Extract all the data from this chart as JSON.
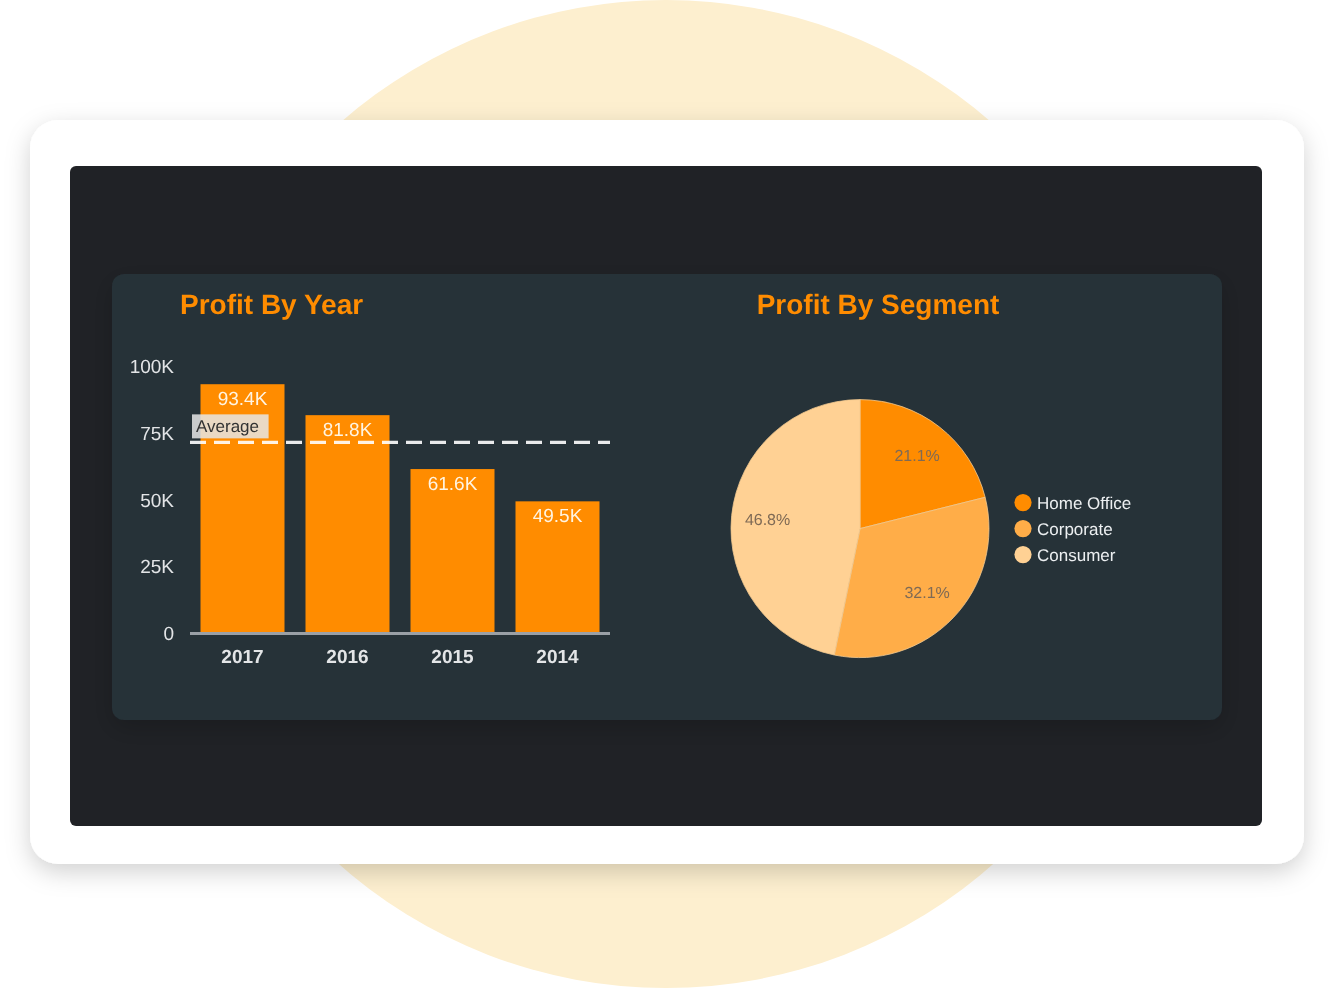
{
  "chart_data": [
    {
      "type": "bar",
      "title": "Profit By Year",
      "categories": [
        "2017",
        "2016",
        "2015",
        "2014"
      ],
      "values": [
        93400,
        81800,
        61600,
        49500
      ],
      "color": "#ff8c00",
      "value_labels": [
        "93.4K",
        "81.8K",
        "61.6K",
        "49.5K"
      ],
      "ylim": [
        0,
        100000
      ],
      "yticks": [
        0,
        {
          "value": 25000,
          "label": "25K"
        },
        {
          "value": 50000,
          "label": "50K"
        },
        {
          "value": 75000,
          "label": "75K"
        },
        {
          "value": 100000,
          "label": "100K"
        }
      ],
      "ref_lines": [
        {
          "axis": "y",
          "value": 71600,
          "label": "Average",
          "color": "#ffffff",
          "line_style": "dashed"
        }
      ]
    },
    {
      "type": "pie",
      "title": "Profit By Segment",
      "categories": [
        "Home Office",
        "Corporate",
        "Consumer"
      ],
      "values": [
        21.1,
        32.1,
        46.8
      ],
      "colors": [
        "#ff8c00",
        "#ffad48",
        "#ffd194"
      ],
      "value_labels": [
        "21.1%",
        "32.1%",
        "46.8%"
      ],
      "legend": "right"
    }
  ]
}
